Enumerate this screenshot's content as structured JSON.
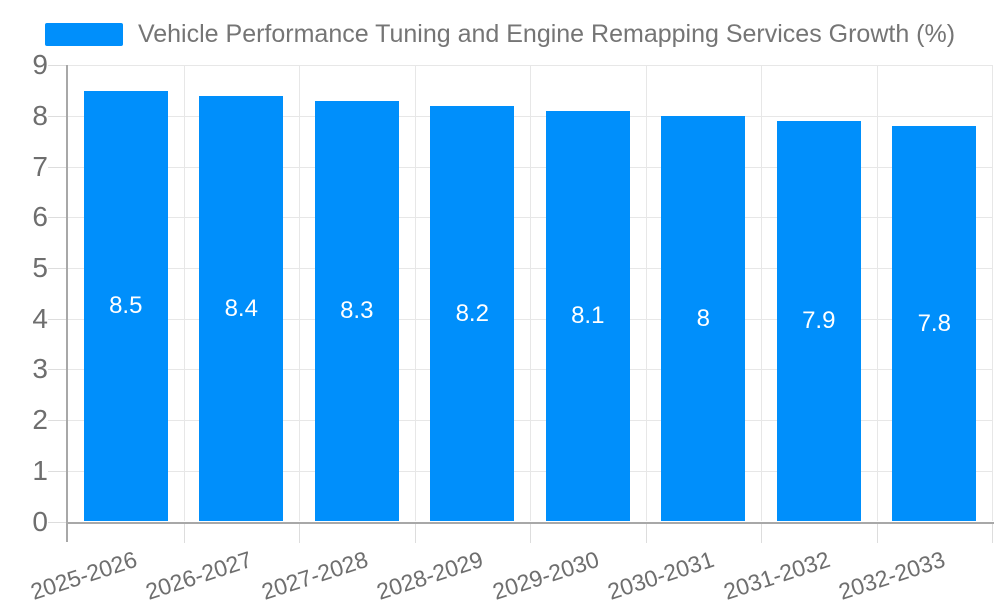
{
  "legend": {
    "label": "Vehicle Performance Tuning and Engine Remapping Services Growth (%)"
  },
  "chart_data": {
    "type": "bar",
    "title": "Vehicle Performance Tuning and Engine Remapping Services Growth (%)",
    "series_name": "Vehicle Performance Tuning and Engine Remapping Services Growth (%)",
    "categories": [
      "2025-2026",
      "2026-2027",
      "2027-2028",
      "2028-2029",
      "2029-2030",
      "2030-2031",
      "2031-2032",
      "2032-2033"
    ],
    "values": [
      8.5,
      8.4,
      8.3,
      8.2,
      8.1,
      8,
      7.9,
      7.8
    ],
    "value_labels": [
      "8.5",
      "8.4",
      "8.3",
      "8.2",
      "8.1",
      "8",
      "7.9",
      "7.8"
    ],
    "xlabel": "",
    "ylabel": "",
    "ylim": [
      0,
      9
    ],
    "yticks": [
      0,
      1,
      2,
      3,
      4,
      5,
      6,
      7,
      8,
      9
    ],
    "grid": true,
    "legend_position": "top",
    "data_labels_position": "center"
  },
  "colors": {
    "bar": "#008FFB",
    "grid": "#e7e7e7",
    "tick": "#dddddd",
    "axis": "#a8a8a8",
    "axis_label_text": "#6e6e6e",
    "legend_text": "#757575",
    "data_label_text": "#ffffff",
    "background": "#ffffff"
  }
}
